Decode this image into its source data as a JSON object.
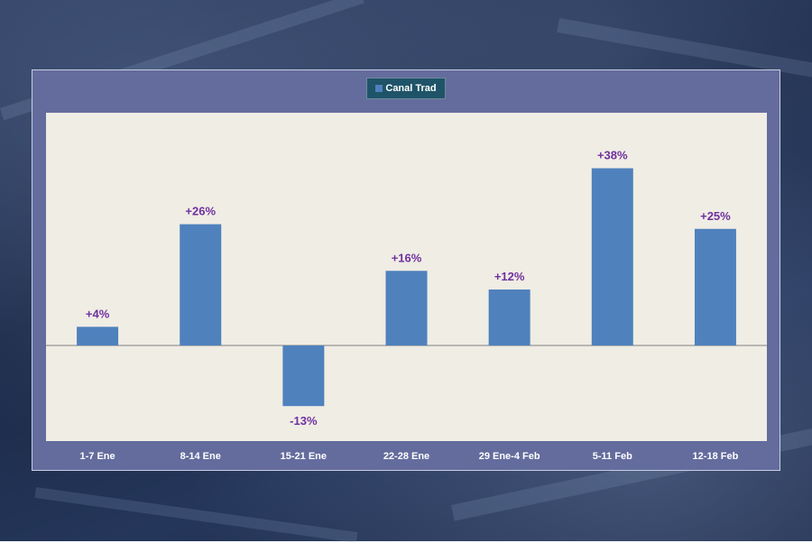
{
  "chart_data": {
    "type": "bar",
    "categories": [
      "1-7 Ene",
      "8-14 Ene",
      "15-21 Ene",
      "22-28 Ene",
      "29 Ene-4 Feb",
      "5-11 Feb",
      "12-18 Feb"
    ],
    "series": [
      {
        "name": "Canal Trad",
        "values": [
          4,
          26,
          -13,
          16,
          12,
          38,
          25
        ],
        "labels": [
          "+4%",
          "+26%",
          "-13%",
          "+16%",
          "+12%",
          "+38%",
          "+25%"
        ],
        "color": "#4f81bd"
      }
    ],
    "ylim": [
      -20,
      50
    ],
    "legend_position": "top-center",
    "grid": false,
    "colors": {
      "frame": "#646c9e",
      "plot_background": "#efede4",
      "legend_background": "#1f5468",
      "data_label": "#7030a0",
      "tick_label": "#ffffff"
    }
  }
}
